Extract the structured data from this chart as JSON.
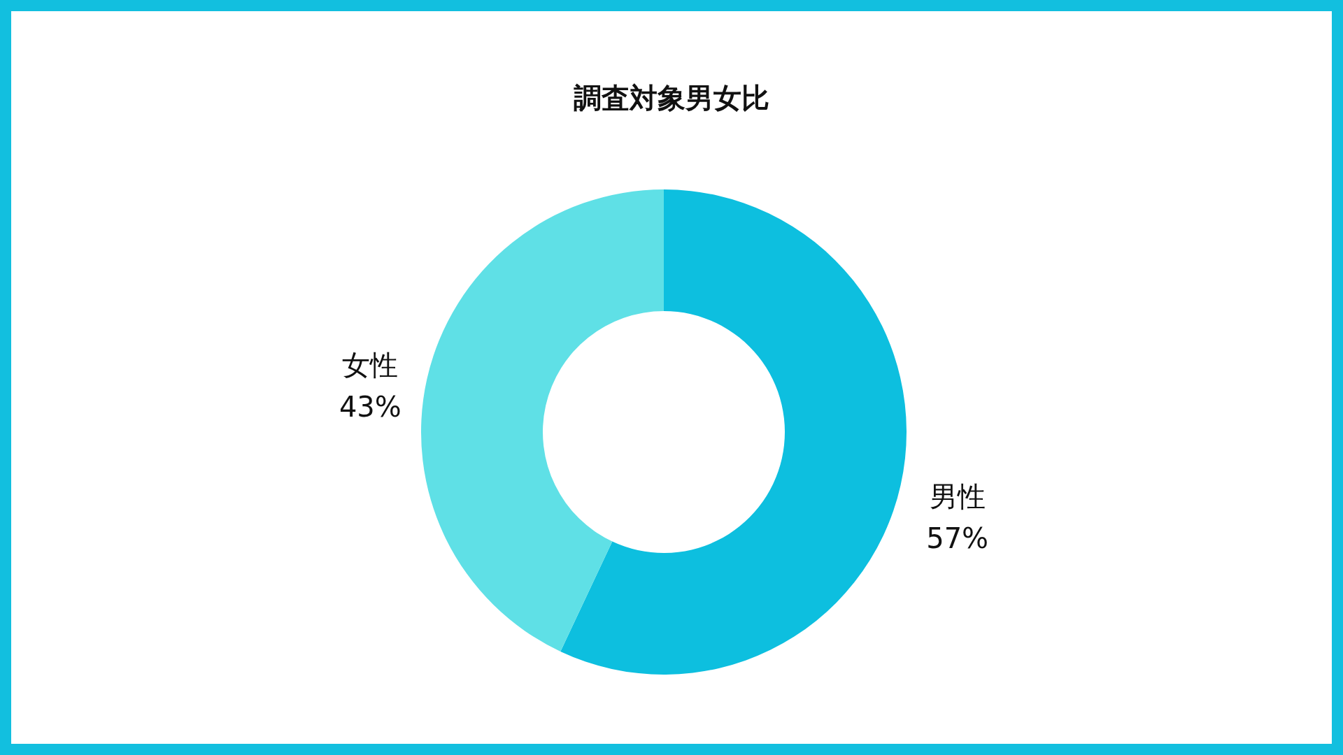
{
  "chart_data": {
    "type": "donut",
    "title": "調査対象男女比",
    "categories": [
      "男性",
      "女性"
    ],
    "values": [
      57,
      43
    ],
    "colors": [
      "#0dbfdf",
      "#5fe0e6"
    ],
    "value_labels": [
      "57%",
      "43%"
    ],
    "legend": false
  }
}
